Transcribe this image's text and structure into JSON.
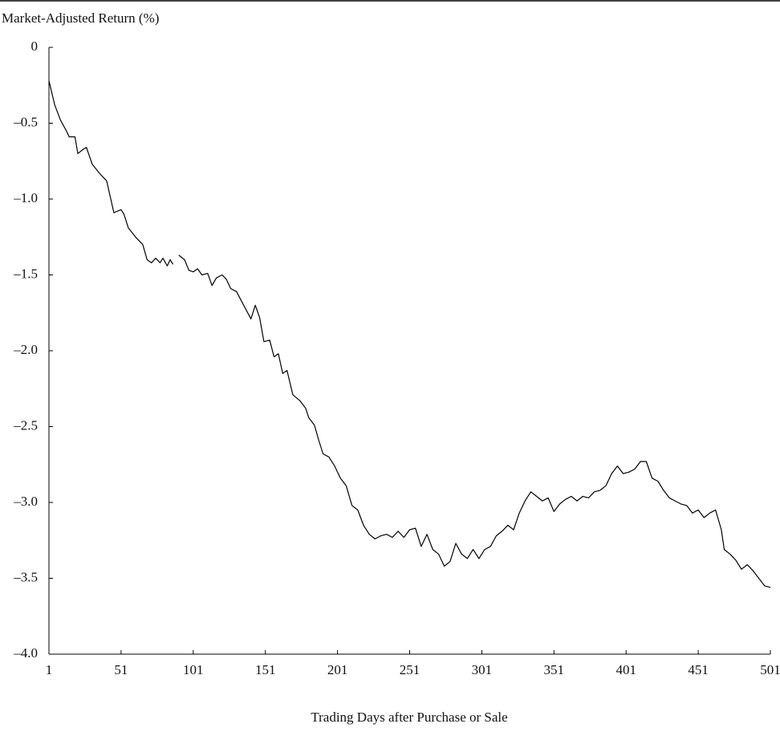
{
  "chart_data": {
    "type": "line",
    "y_label": "Market-Adjusted Return (%)",
    "x_label": "Trading Days after Purchase or Sale",
    "xlim": [
      1,
      501
    ],
    "ylim": [
      -4.0,
      0
    ],
    "xticks": [
      1,
      51,
      101,
      151,
      201,
      251,
      301,
      351,
      401,
      451,
      501
    ],
    "yticks": [
      0,
      {
        "value": -0.5,
        "label": "–0.5"
      },
      {
        "value": -1.0,
        "label": "–1.0"
      },
      {
        "value": -1.5,
        "label": "–1.5"
      },
      {
        "value": -2.0,
        "label": "–2.0"
      },
      {
        "value": -2.5,
        "label": "–2.5"
      },
      {
        "value": -3.0,
        "label": "–3.0"
      },
      {
        "value": -3.5,
        "label": "–3.5"
      },
      {
        "value": -4.0,
        "label": "–4.0"
      }
    ],
    "series": [
      {
        "color": "#000000",
        "x": [
          1,
          5,
          9,
          13,
          15,
          19,
          21,
          25,
          27,
          31,
          36,
          41,
          46,
          51,
          53,
          56,
          61,
          66,
          69,
          72,
          75,
          78,
          80,
          83,
          85,
          87,
          88,
          91,
          95,
          98,
          101,
          104,
          107,
          111,
          114,
          117,
          121,
          124,
          127,
          131,
          136,
          141,
          144,
          147,
          150,
          154,
          157,
          160,
          163,
          166,
          170,
          175,
          179,
          181,
          185,
          188,
          191,
          195,
          199,
          203,
          207,
          211,
          215,
          219,
          223,
          227,
          231,
          235,
          239,
          243,
          247,
          251,
          255,
          259,
          263,
          267,
          271,
          275,
          279,
          283,
          287,
          291,
          295,
          299,
          303,
          307,
          311,
          315,
          319,
          323,
          327,
          331,
          335,
          339,
          343,
          347,
          351,
          355,
          359,
          363,
          367,
          371,
          375,
          379,
          383,
          387,
          391,
          395,
          399,
          403,
          407,
          411,
          415,
          419,
          423,
          427,
          431,
          435,
          439,
          443,
          447,
          451,
          455,
          459,
          463,
          467,
          469,
          473,
          477,
          481,
          485,
          489,
          493,
          497,
          501
        ],
        "values": [
          -0.22,
          -0.38,
          -0.48,
          -0.55,
          -0.59,
          -0.59,
          -0.7,
          -0.67,
          -0.66,
          -0.77,
          -0.83,
          -0.88,
          -1.09,
          -1.07,
          -1.1,
          -1.19,
          -1.25,
          -1.3,
          -1.4,
          -1.42,
          -1.39,
          -1.42,
          -1.39,
          -1.44,
          -1.4,
          -1.43,
          null,
          -1.37,
          -1.4,
          -1.47,
          -1.48,
          -1.46,
          -1.5,
          -1.49,
          -1.57,
          -1.52,
          -1.5,
          -1.53,
          -1.59,
          -1.61,
          -1.7,
          -1.79,
          -1.7,
          -1.78,
          -1.94,
          -1.93,
          -2.04,
          -2.02,
          -2.15,
          -2.13,
          -2.29,
          -2.33,
          -2.38,
          -2.44,
          -2.49,
          -2.59,
          -2.68,
          -2.7,
          -2.76,
          -2.84,
          -2.89,
          -3.02,
          -3.05,
          -3.15,
          -3.21,
          -3.24,
          -3.22,
          -3.21,
          -3.23,
          -3.19,
          -3.23,
          -3.18,
          -3.17,
          -3.29,
          -3.21,
          -3.31,
          -3.34,
          -3.42,
          -3.39,
          -3.27,
          -3.34,
          -3.37,
          -3.31,
          -3.37,
          -3.31,
          -3.29,
          -3.22,
          -3.19,
          -3.15,
          -3.18,
          -3.07,
          -2.99,
          -2.93,
          -2.96,
          -2.99,
          -2.97,
          -3.06,
          -3.01,
          -2.98,
          -2.96,
          -2.99,
          -2.96,
          -2.97,
          -2.93,
          -2.92,
          -2.89,
          -2.81,
          -2.76,
          -2.81,
          -2.8,
          -2.78,
          -2.73,
          -2.73,
          -2.84,
          -2.86,
          -2.92,
          -2.97,
          -2.99,
          -3.01,
          -3.02,
          -3.07,
          -3.05,
          -3.1,
          -3.07,
          -3.05,
          -3.18,
          -3.31,
          -3.34,
          -3.38,
          -3.44,
          -3.41,
          -3.45,
          -3.5,
          -3.55,
          -3.56
        ]
      }
    ]
  }
}
